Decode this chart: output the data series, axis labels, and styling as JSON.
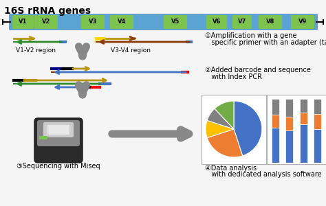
{
  "title": "16S rRNA genes",
  "bg_color": "#f5f5f5",
  "gene_bar_color": "#5ba3d0",
  "v_region_color": "#7dc44e",
  "v_regions": [
    "V1",
    "V2",
    "V3",
    "V4",
    "V5",
    "V6",
    "V7",
    "V8",
    "V9"
  ],
  "step1_text_line1": "①Amplification with a gene",
  "step1_text_line2": "   specific primer with an adapter (tag)",
  "step2_text_line1": "②Added barcode and sequence",
  "step2_text_line2": "   with Index PCR",
  "step3_text": "③Sequencing with Miseq",
  "step4_text_line1": "④Data analysis",
  "step4_text_line2": "   with dedicated analysis software",
  "region_label1": "V1-V2 region",
  "region_label2": "V3-V4 region",
  "pie_colors": [
    "#4472c4",
    "#ed7d31",
    "#ffc000",
    "#808080",
    "#70ad47"
  ],
  "pie_sizes": [
    45,
    25,
    10,
    8,
    12
  ],
  "bar_colors_bottom_to_top": [
    "#4472c4",
    "#ed7d31",
    "#808080"
  ],
  "bar_data": [
    [
      0.55,
      0.2,
      0.25
    ],
    [
      0.5,
      0.22,
      0.28
    ],
    [
      0.6,
      0.18,
      0.22
    ],
    [
      0.52,
      0.24,
      0.24
    ]
  ]
}
